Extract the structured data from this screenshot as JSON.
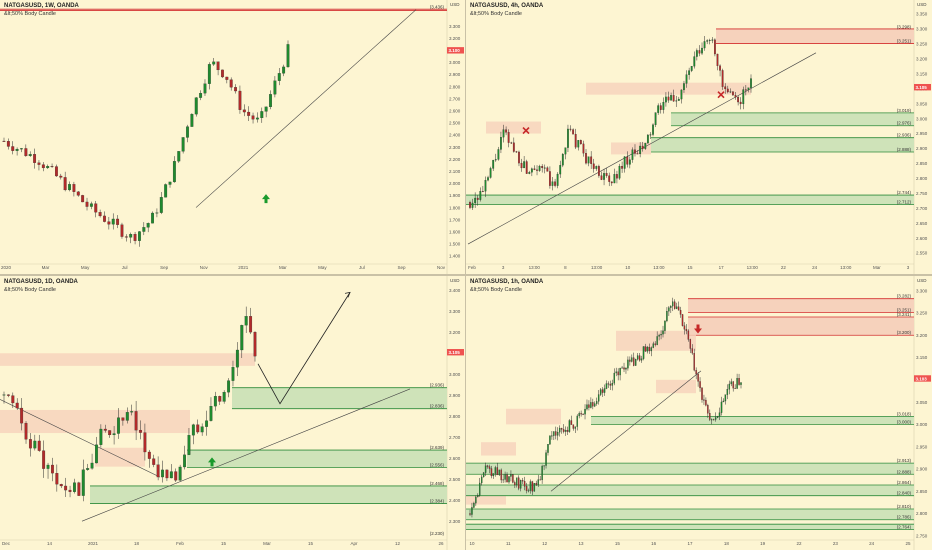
{
  "panels": [
    {
      "id": "p1",
      "title": "NATGASUSD, 1W, OANDA",
      "subtitle": "&lt;50% Body Candle",
      "currency_label": "USD",
      "price_tag": "3.100",
      "y_ticks": [
        "3.300",
        "3.200",
        "3.100",
        "3.000",
        "2.900",
        "2.800",
        "2.700",
        "2.600",
        "2.500",
        "2.400",
        "2.300",
        "2.200",
        "2.100",
        "2.000",
        "1.900",
        "1.800",
        "1.700",
        "1.600",
        "1.500",
        "1.400"
      ],
      "x_ticks": [
        "2020",
        "Mar",
        "May",
        "Jul",
        "Sep",
        "Nov",
        "2021",
        "Mar",
        "May",
        "Jul",
        "Sep",
        "Nov"
      ],
      "levels": [
        {
          "label": "(3.436)"
        }
      ],
      "markers": [
        {
          "type": "arrow-up",
          "color": "#1a9a2c"
        }
      ]
    },
    {
      "id": "p2",
      "title": "NATGASUSD, 4h, OANDA",
      "subtitle": "&lt;50% Body Candle",
      "currency_label": "USD",
      "price_tag": "3.105",
      "y_ticks": [
        "3.350",
        "3.300",
        "3.250",
        "3.200",
        "3.150",
        "3.100",
        "3.050",
        "3.000",
        "2.950",
        "2.900",
        "2.850",
        "2.800",
        "2.750",
        "2.700",
        "2.650",
        "2.600",
        "2.550"
      ],
      "x_ticks": [
        "Feb",
        "3",
        "13:00",
        "8",
        "13:00",
        "10",
        "13:00",
        "15",
        "17",
        "13:00",
        "22",
        "24",
        "13:00",
        "Mar",
        "3"
      ],
      "levels": [
        {
          "label": "(3.298)",
          "kind": "supply"
        },
        {
          "label": "(3.251)",
          "kind": "supply"
        },
        {
          "label": "(3.019)",
          "kind": "demand"
        },
        {
          "label": "(2.976)",
          "kind": "demand"
        },
        {
          "label": "(2.936)",
          "kind": "demand"
        },
        {
          "label": "(2.888)",
          "kind": "demand"
        },
        {
          "label": "(2.744)",
          "kind": "demand"
        },
        {
          "label": "(2.712)",
          "kind": "demand"
        }
      ],
      "markers": [
        {
          "type": "cross",
          "color": "#c62828"
        },
        {
          "type": "cross",
          "color": "#c62828"
        }
      ]
    },
    {
      "id": "p3",
      "title": "NATGASUSD, 1D, OANDA",
      "subtitle": "&lt;50% Body Candle",
      "currency_label": "USD",
      "price_tag": "3.105",
      "y_ticks": [
        "3.400",
        "3.300",
        "3.200",
        "3.100",
        "3.000",
        "2.900",
        "2.800",
        "2.700",
        "2.600",
        "2.500",
        "2.400",
        "2.300",
        "2.200"
      ],
      "x_ticks": [
        "Dec",
        "14",
        "2021",
        "18",
        "Feb",
        "15",
        "Mar",
        "15",
        "Apr",
        "12",
        "26"
      ],
      "levels": [
        {
          "label": "(2.936)",
          "kind": "demand"
        },
        {
          "label": "(2.836)",
          "kind": "demand"
        },
        {
          "label": "(2.639)",
          "kind": "demand"
        },
        {
          "label": "(2.556)",
          "kind": "demand"
        },
        {
          "label": "(2.468)",
          "kind": "demand"
        },
        {
          "label": "(2.384)",
          "kind": "demand"
        },
        {
          "label": "(2.230)",
          "kind": "demand"
        }
      ],
      "markers": [
        {
          "type": "arrow-up",
          "color": "#1a9a2c"
        }
      ]
    },
    {
      "id": "p4",
      "title": "NATGASUSD, 1h, OANDA",
      "subtitle": "&lt;50% Body Candle",
      "currency_label": "USD",
      "price_tag": "3.103",
      "y_ticks": [
        "3.300",
        "3.250",
        "3.200",
        "3.150",
        "3.100",
        "3.050",
        "3.000",
        "2.950",
        "2.900",
        "2.850",
        "2.800",
        "2.750"
      ],
      "x_ticks": [
        "10",
        "11",
        "12",
        "13",
        "15",
        "16",
        "17",
        "18",
        "19",
        "22",
        "23",
        "24",
        "25"
      ],
      "levels": [
        {
          "label": "(3.282)",
          "kind": "supply"
        },
        {
          "label": "(3.251)",
          "kind": "supply"
        },
        {
          "label": "(3.241)",
          "kind": "supply"
        },
        {
          "label": "(3.200)",
          "kind": "supply"
        },
        {
          "label": "(3.018)",
          "kind": "demand"
        },
        {
          "label": "(3.000)",
          "kind": "demand"
        },
        {
          "label": "(2.913)",
          "kind": "demand"
        },
        {
          "label": "(2.888)",
          "kind": "demand"
        },
        {
          "label": "(2.864)",
          "kind": "demand"
        },
        {
          "label": "(2.840)",
          "kind": "demand"
        },
        {
          "label": "(2.810)",
          "kind": "demand"
        },
        {
          "label": "(2.786)",
          "kind": "demand"
        },
        {
          "label": "(2.764)",
          "kind": "demand"
        }
      ],
      "markers": [
        {
          "type": "arrow-down",
          "color": "#c62828"
        }
      ]
    }
  ],
  "colors": {
    "background": "#fdf5d2",
    "up_candle": "#1f8a2e",
    "down_candle": "#b22a2a",
    "supply_fill": "#f6d2bc",
    "supply_line": "#d32f2f",
    "demand_fill": "#cfe3b9",
    "demand_line": "#2e8b3a",
    "price_tag": "#ef5350"
  },
  "chart_data": [
    {
      "type": "line",
      "title": "NATGASUSD, 1W, OANDA",
      "x": [
        "2020",
        "Mar",
        "May",
        "Jul",
        "Sep",
        "Nov",
        "2021"
      ],
      "series": [
        {
          "values": [
            2.2,
            1.85,
            1.65,
            1.7,
            2.5,
            2.9,
            3.1
          ]
        }
      ],
      "ylim": [
        1.4,
        3.3
      ]
    },
    {
      "type": "line",
      "title": "NATGASUSD, 4h, OANDA",
      "x": [
        "Feb",
        "3",
        "8",
        "10",
        "15",
        "17",
        "22"
      ],
      "series": [
        {
          "values": [
            2.72,
            2.95,
            2.85,
            2.78,
            2.93,
            3.25,
            3.1
          ]
        }
      ],
      "ylim": [
        2.55,
        3.35
      ]
    },
    {
      "type": "line",
      "title": "NATGASUSD, 1D, OANDA",
      "x": [
        "Dec",
        "14",
        "2021",
        "18",
        "Feb",
        "15"
      ],
      "series": [
        {
          "values": [
            2.9,
            2.45,
            2.6,
            2.5,
            2.85,
            3.2
          ]
        }
      ],
      "ylim": [
        2.2,
        3.4
      ]
    },
    {
      "type": "line",
      "title": "NATGASUSD, 1h, OANDA",
      "x": [
        "10",
        "12",
        "15",
        "17",
        "18",
        "19",
        "22"
      ],
      "series": [
        {
          "values": [
            2.82,
            2.85,
            3.0,
            3.15,
            3.25,
            2.97,
            3.1
          ]
        }
      ],
      "ylim": [
        2.75,
        3.3
      ]
    }
  ]
}
